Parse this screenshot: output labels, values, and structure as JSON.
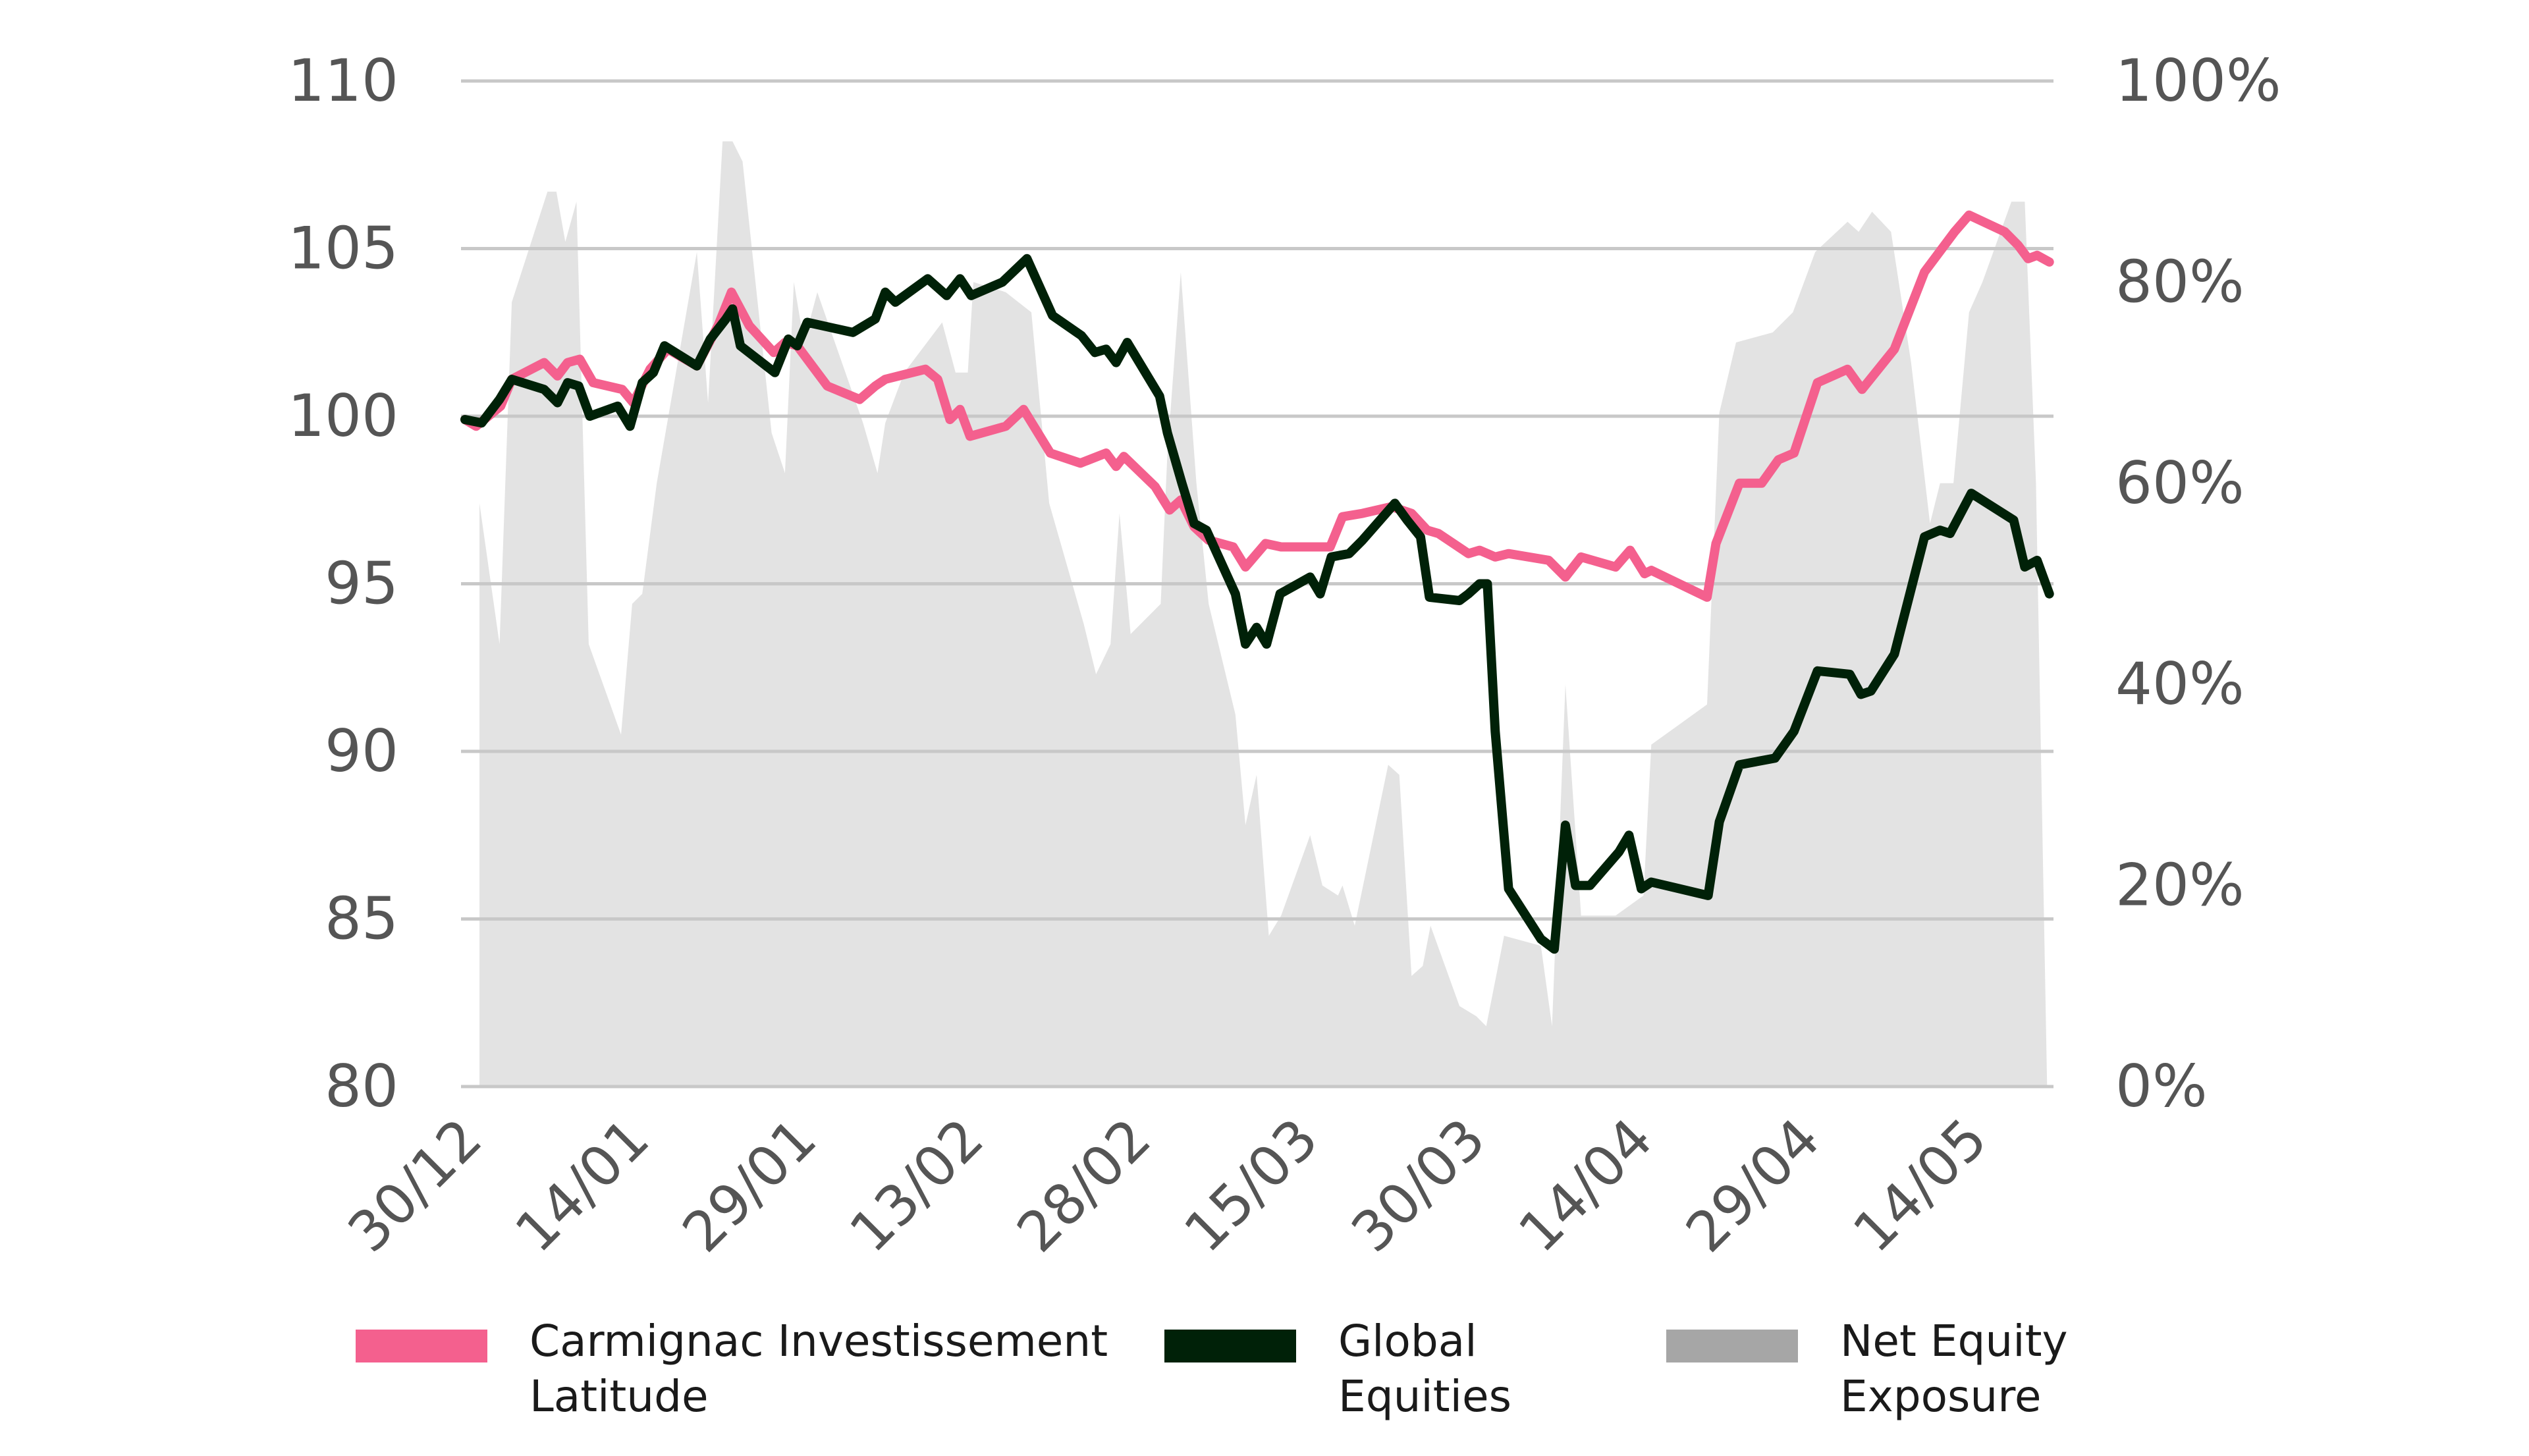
{
  "chart_data": {
    "type": "line",
    "title": "",
    "xlabel": "",
    "ylabel": "",
    "y2label": "",
    "x_unit": "calendar days since 30/12",
    "xlim": [
      0,
      142
    ],
    "ylim": [
      80,
      110
    ],
    "y2lim": [
      0,
      100
    ],
    "grid": true,
    "legend_position": "bottom",
    "x_ticks": [
      {
        "day": 0,
        "label": "30/12"
      },
      {
        "day": 15,
        "label": "14/01"
      },
      {
        "day": 30,
        "label": "29/01"
      },
      {
        "day": 45,
        "label": "13/02"
      },
      {
        "day": 60,
        "label": "28/02"
      },
      {
        "day": 75,
        "label": "15/03"
      },
      {
        "day": 90,
        "label": "30/03"
      },
      {
        "day": 105,
        "label": "14/04"
      },
      {
        "day": 120,
        "label": "29/04"
      },
      {
        "day": 135,
        "label": "14/05"
      }
    ],
    "y_ticks": [
      {
        "value": 80,
        "label": "80"
      },
      {
        "value": 85,
        "label": "85"
      },
      {
        "value": 90,
        "label": "90"
      },
      {
        "value": 95,
        "label": "95"
      },
      {
        "value": 100,
        "label": "100"
      },
      {
        "value": 105,
        "label": "105"
      },
      {
        "value": 110,
        "label": "110"
      }
    ],
    "y2_ticks": [
      {
        "value": 0,
        "label": "0%"
      },
      {
        "value": 20,
        "label": "20%"
      },
      {
        "value": 40,
        "label": "40%"
      },
      {
        "value": 60,
        "label": "60%"
      },
      {
        "value": 80,
        "label": "80%"
      },
      {
        "value": 100,
        "label": "100%"
      }
    ],
    "series": [
      {
        "name": "Carmignac Investissement Latitude",
        "legend_label": "Carmignac Investissement\nLatitude",
        "kind": "line",
        "axis": "left",
        "color": "#f4608e",
        "points": [
          [
            0,
            99.9
          ],
          [
            1.0,
            99.7
          ],
          [
            3.2,
            100.3
          ],
          [
            4.2,
            101.1
          ],
          [
            7.1,
            101.6
          ],
          [
            8.3,
            101.2
          ],
          [
            9.2,
            101.6
          ],
          [
            10.3,
            101.7
          ],
          [
            11.5,
            101.0
          ],
          [
            14.1,
            100.8
          ],
          [
            15.1,
            100.4
          ],
          [
            16.6,
            101.4
          ],
          [
            18.2,
            102.0
          ],
          [
            20.8,
            101.5
          ],
          [
            22.7,
            102.7
          ],
          [
            23.9,
            103.7
          ],
          [
            25.5,
            102.7
          ],
          [
            27.7,
            101.9
          ],
          [
            28.7,
            102.2
          ],
          [
            29.8,
            102.1
          ],
          [
            32.5,
            100.9
          ],
          [
            35.4,
            100.5
          ],
          [
            36.8,
            100.9
          ],
          [
            37.7,
            101.1
          ],
          [
            41.3,
            101.4
          ],
          [
            42.4,
            101.1
          ],
          [
            43.5,
            99.9
          ],
          [
            44.4,
            100.2
          ],
          [
            45.3,
            99.4
          ],
          [
            48.5,
            99.7
          ],
          [
            50.1,
            100.2
          ],
          [
            52.5,
            98.9
          ],
          [
            55.2,
            98.6
          ],
          [
            57.5,
            98.9
          ],
          [
            58.4,
            98.5
          ],
          [
            59.1,
            98.8
          ],
          [
            61.9,
            97.9
          ],
          [
            63.2,
            97.2
          ],
          [
            64.2,
            97.5
          ],
          [
            65.4,
            96.7
          ],
          [
            66.7,
            96.3
          ],
          [
            68.9,
            96.1
          ],
          [
            70.0,
            95.5
          ],
          [
            71.8,
            96.2
          ],
          [
            73.2,
            96.1
          ],
          [
            77.6,
            96.1
          ],
          [
            78.7,
            97.0
          ],
          [
            80.5,
            97.1
          ],
          [
            83.1,
            97.3
          ],
          [
            84.9,
            97.1
          ],
          [
            86.3,
            96.6
          ],
          [
            87.3,
            96.5
          ],
          [
            90.0,
            95.9
          ],
          [
            91.0,
            96.0
          ],
          [
            92.4,
            95.8
          ],
          [
            93.6,
            95.9
          ],
          [
            97.2,
            95.7
          ],
          [
            98.7,
            95.2
          ],
          [
            100.1,
            95.8
          ],
          [
            103.2,
            95.5
          ],
          [
            104.5,
            96.0
          ],
          [
            105.8,
            95.3
          ],
          [
            106.4,
            95.4
          ],
          [
            111.4,
            94.6
          ],
          [
            112.2,
            96.2
          ],
          [
            114.3,
            98.0
          ],
          [
            116.3,
            98.0
          ],
          [
            117.8,
            98.7
          ],
          [
            119.2,
            98.9
          ],
          [
            121.3,
            101.0
          ],
          [
            124.0,
            101.4
          ],
          [
            125.3,
            100.8
          ],
          [
            128.2,
            102.0
          ],
          [
            130.9,
            104.3
          ],
          [
            133.6,
            105.5
          ],
          [
            134.9,
            106.0
          ],
          [
            138.1,
            105.5
          ],
          [
            139.3,
            105.1
          ],
          [
            140.2,
            104.7
          ],
          [
            141.0,
            104.8
          ],
          [
            142.1,
            104.6
          ]
        ]
      },
      {
        "name": "Global Equities",
        "legend_label": "Global\nEquities",
        "kind": "line",
        "axis": "left",
        "color": "#002108",
        "points": [
          [
            0,
            99.9
          ],
          [
            1.5,
            99.8
          ],
          [
            3.1,
            100.5
          ],
          [
            4.2,
            101.1
          ],
          [
            7.1,
            100.8
          ],
          [
            8.3,
            100.4
          ],
          [
            9.2,
            101.0
          ],
          [
            10.2,
            100.9
          ],
          [
            11.2,
            100.0
          ],
          [
            13.7,
            100.3
          ],
          [
            14.8,
            99.7
          ],
          [
            15.9,
            101.0
          ],
          [
            16.9,
            101.3
          ],
          [
            17.9,
            102.1
          ],
          [
            20.8,
            101.5
          ],
          [
            22.0,
            102.3
          ],
          [
            23.4,
            102.9
          ],
          [
            24.0,
            103.2
          ],
          [
            24.7,
            102.1
          ],
          [
            27.8,
            101.3
          ],
          [
            29.0,
            102.3
          ],
          [
            29.8,
            102.1
          ],
          [
            30.7,
            102.8
          ],
          [
            34.8,
            102.5
          ],
          [
            36.8,
            102.9
          ],
          [
            37.7,
            103.7
          ],
          [
            38.6,
            103.4
          ],
          [
            41.5,
            104.1
          ],
          [
            43.2,
            103.6
          ],
          [
            44.4,
            104.1
          ],
          [
            45.4,
            103.6
          ],
          [
            48.2,
            104.0
          ],
          [
            50.4,
            104.7
          ],
          [
            52.7,
            103.0
          ],
          [
            55.3,
            102.4
          ],
          [
            56.5,
            101.9
          ],
          [
            57.5,
            102.0
          ],
          [
            58.4,
            101.6
          ],
          [
            59.4,
            102.2
          ],
          [
            62.3,
            100.6
          ],
          [
            63.0,
            99.5
          ],
          [
            64.3,
            98.0
          ],
          [
            65.4,
            96.8
          ],
          [
            66.5,
            96.6
          ],
          [
            69.1,
            94.7
          ],
          [
            70.0,
            93.2
          ],
          [
            71.0,
            93.7
          ],
          [
            71.9,
            93.2
          ],
          [
            73.1,
            94.7
          ],
          [
            75.8,
            95.2
          ],
          [
            76.7,
            94.7
          ],
          [
            77.7,
            95.8
          ],
          [
            79.3,
            95.9
          ],
          [
            80.5,
            96.3
          ],
          [
            83.4,
            97.4
          ],
          [
            84.5,
            96.9
          ],
          [
            85.7,
            96.4
          ],
          [
            86.5,
            94.6
          ],
          [
            89.2,
            94.5
          ],
          [
            90.0,
            94.7
          ],
          [
            91.0,
            95.0
          ],
          [
            91.7,
            95.0
          ],
          [
            92.4,
            90.6
          ],
          [
            93.6,
            85.9
          ],
          [
            96.5,
            84.4
          ],
          [
            97.7,
            84.1
          ],
          [
            98.7,
            87.8
          ],
          [
            99.6,
            86.0
          ],
          [
            100.9,
            86.0
          ],
          [
            103.5,
            87.0
          ],
          [
            104.4,
            87.5
          ],
          [
            105.5,
            85.9
          ],
          [
            106.4,
            86.1
          ],
          [
            111.5,
            85.7
          ],
          [
            112.5,
            87.9
          ],
          [
            114.3,
            89.6
          ],
          [
            117.5,
            89.8
          ],
          [
            119.2,
            90.6
          ],
          [
            121.3,
            92.4
          ],
          [
            124.2,
            92.3
          ],
          [
            125.2,
            91.7
          ],
          [
            126.1,
            91.8
          ],
          [
            128.2,
            92.9
          ],
          [
            130.9,
            96.4
          ],
          [
            132.3,
            96.6
          ],
          [
            133.2,
            96.5
          ],
          [
            135.1,
            97.7
          ],
          [
            138.9,
            96.9
          ],
          [
            139.9,
            95.5
          ],
          [
            141.0,
            95.7
          ],
          [
            142.1,
            94.7
          ]
        ]
      },
      {
        "name": "Net Equity Exposure",
        "legend_label": "Net Equity\nExposure",
        "kind": "area",
        "axis": "right",
        "color": "#e3e3e3",
        "legend_color": "#a6a6a6",
        "points": [
          [
            1.3,
            0
          ],
          [
            1.3,
            58
          ],
          [
            3.1,
            44
          ],
          [
            4.2,
            78
          ],
          [
            7.4,
            89
          ],
          [
            8.2,
            89
          ],
          [
            9.0,
            84
          ],
          [
            10.0,
            88
          ],
          [
            11.1,
            44
          ],
          [
            14.0,
            35
          ],
          [
            15.0,
            48
          ],
          [
            15.9,
            49
          ],
          [
            17.2,
            60
          ],
          [
            20.8,
            83
          ],
          [
            21.8,
            68
          ],
          [
            23.1,
            94
          ],
          [
            24.0,
            94
          ],
          [
            24.9,
            92
          ],
          [
            27.5,
            65
          ],
          [
            28.7,
            61
          ],
          [
            29.5,
            80
          ],
          [
            30.4,
            74
          ],
          [
            31.6,
            79
          ],
          [
            35.7,
            66
          ],
          [
            37.0,
            61
          ],
          [
            37.7,
            66
          ],
          [
            39.4,
            71
          ],
          [
            42.8,
            76
          ],
          [
            44.0,
            71
          ],
          [
            45.1,
            71
          ],
          [
            45.6,
            80
          ],
          [
            48.5,
            79
          ],
          [
            50.8,
            77
          ],
          [
            52.4,
            58
          ],
          [
            55.5,
            46
          ],
          [
            56.6,
            41
          ],
          [
            57.9,
            44
          ],
          [
            58.7,
            57
          ],
          [
            59.7,
            45
          ],
          [
            62.4,
            48
          ],
          [
            63.0,
            63
          ],
          [
            64.2,
            81
          ],
          [
            65.6,
            60
          ],
          [
            66.7,
            48
          ],
          [
            69.1,
            37
          ],
          [
            70.0,
            26
          ],
          [
            71.0,
            31
          ],
          [
            72.1,
            15
          ],
          [
            73.2,
            17
          ],
          [
            75.8,
            25
          ],
          [
            76.9,
            20
          ],
          [
            78.3,
            19
          ],
          [
            78.7,
            20
          ],
          [
            79.8,
            16
          ],
          [
            82.8,
            32
          ],
          [
            83.8,
            31
          ],
          [
            84.9,
            11
          ],
          [
            85.9,
            12
          ],
          [
            86.6,
            16
          ],
          [
            89.2,
            8
          ],
          [
            90.7,
            7
          ],
          [
            91.6,
            6
          ],
          [
            93.2,
            15
          ],
          [
            96.5,
            14
          ],
          [
            97.5,
            6
          ],
          [
            98.7,
            40
          ],
          [
            100.1,
            17
          ],
          [
            103.2,
            17
          ],
          [
            105.7,
            19
          ],
          [
            106.4,
            34
          ],
          [
            111.4,
            38
          ],
          [
            112.5,
            67
          ],
          [
            114.0,
            74
          ],
          [
            117.3,
            75
          ],
          [
            119.1,
            77
          ],
          [
            121.1,
            83
          ],
          [
            124.0,
            86
          ],
          [
            125.0,
            85
          ],
          [
            126.2,
            87
          ],
          [
            127.9,
            85
          ],
          [
            129.7,
            72
          ],
          [
            131.4,
            56
          ],
          [
            132.3,
            60
          ],
          [
            133.5,
            60
          ],
          [
            134.9,
            77
          ],
          [
            136.1,
            80
          ],
          [
            138.7,
            88
          ],
          [
            139.9,
            88
          ],
          [
            140.9,
            60
          ],
          [
            141.9,
            0
          ]
        ]
      }
    ]
  }
}
